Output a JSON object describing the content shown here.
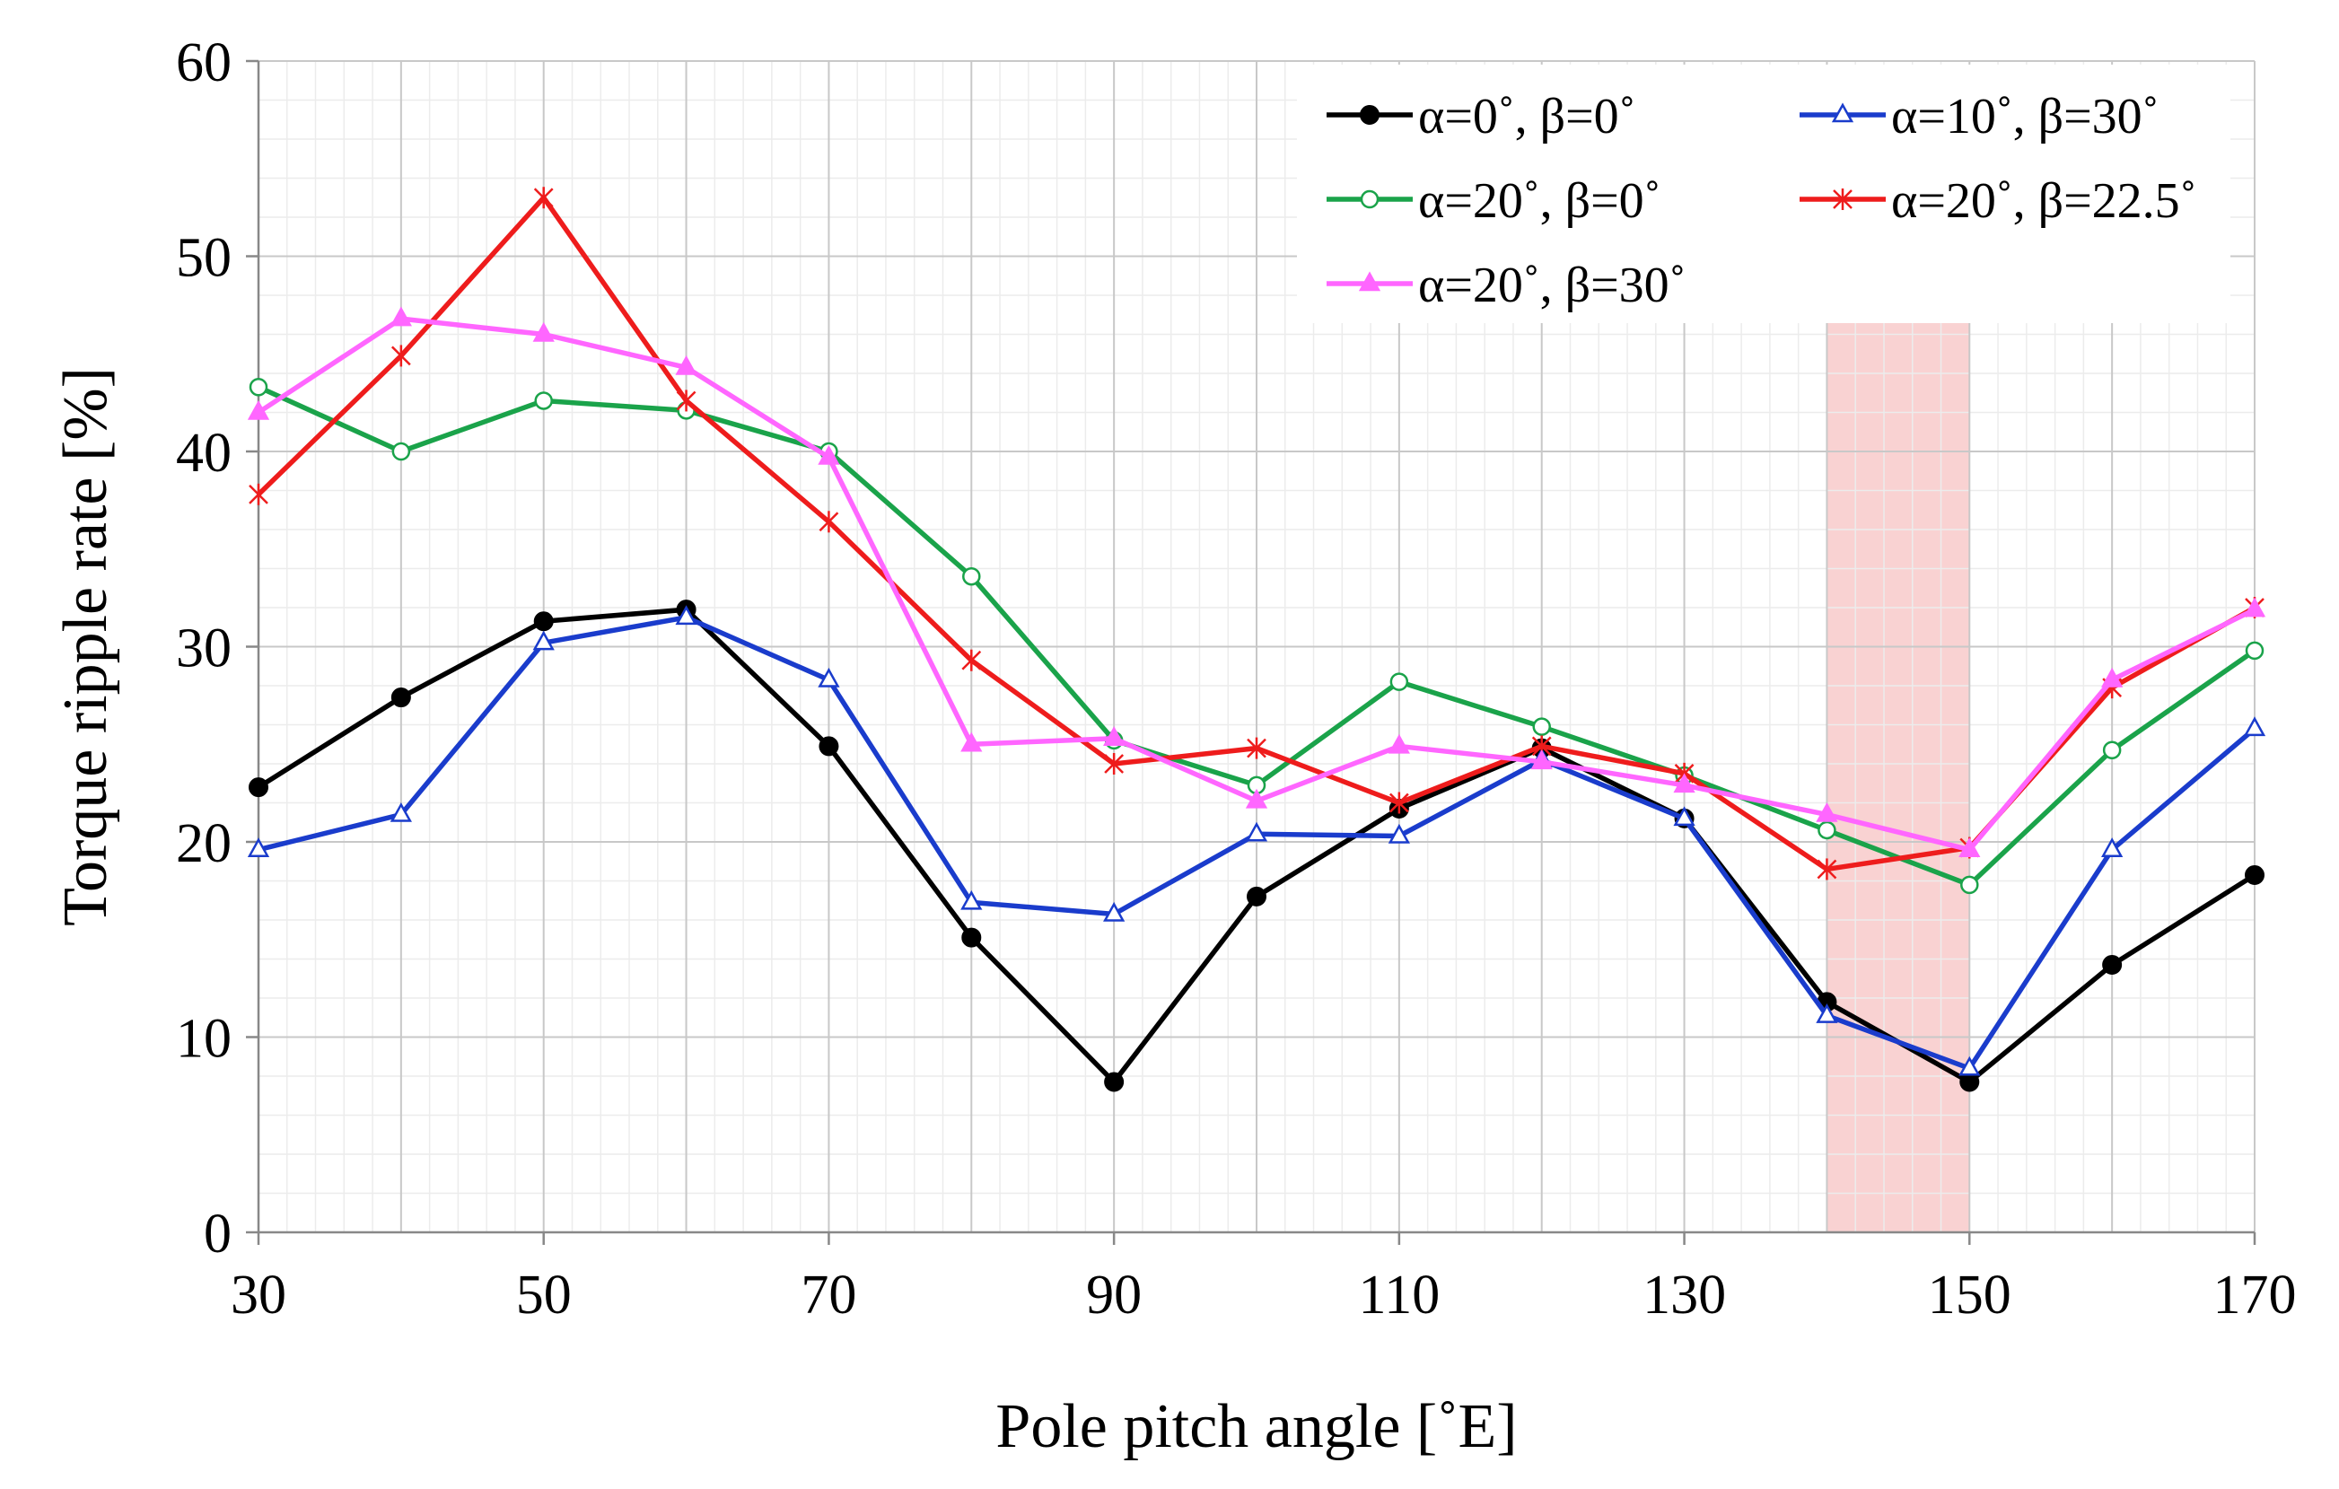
{
  "chart_data": {
    "type": "line",
    "title": "",
    "xlabel": "Pole pitch angle [˚E]",
    "ylabel": "Torque ripple rate [%]",
    "xlim": [
      30,
      170
    ],
    "ylim": [
      0,
      60
    ],
    "x_major_ticks": [
      30,
      50,
      70,
      90,
      110,
      130,
      150,
      170
    ],
    "x_tick_labels": [
      "30",
      "50",
      "70",
      "90",
      "110",
      "130",
      "150",
      "170"
    ],
    "y_major_ticks": [
      0,
      10,
      20,
      30,
      40,
      50,
      60
    ],
    "y_tick_labels": [
      "0",
      "10",
      "20",
      "30",
      "40",
      "50",
      "60"
    ],
    "x_minor_step": 2,
    "y_minor_step": 2,
    "grid": true,
    "legend_position": "top-right",
    "highlight_band": {
      "x_from": 140,
      "x_to": 150,
      "color": "#f4a6a6"
    },
    "x": [
      30,
      40,
      50,
      60,
      70,
      80,
      90,
      100,
      110,
      120,
      130,
      140,
      150,
      160,
      170
    ],
    "series": [
      {
        "name": "α=0˚, β=0˚",
        "color": "#000000",
        "marker": "filled-circle",
        "values": [
          22.8,
          27.4,
          31.3,
          31.9,
          24.9,
          15.1,
          7.7,
          17.2,
          21.7,
          24.8,
          21.2,
          11.8,
          7.7,
          13.7,
          18.3
        ]
      },
      {
        "name": "α=10˚, β=30˚",
        "color": "#1a3ccc",
        "marker": "open-triangle",
        "values": [
          19.6,
          21.4,
          30.2,
          31.5,
          28.3,
          16.9,
          16.3,
          20.4,
          20.3,
          24.2,
          21.2,
          11.1,
          8.4,
          19.6,
          25.8
        ]
      },
      {
        "name": "α=20˚, β=0˚",
        "color": "#1aa34a",
        "marker": "open-circle",
        "values": [
          43.3,
          40.0,
          42.6,
          42.1,
          40.0,
          33.6,
          25.2,
          22.9,
          28.2,
          25.9,
          23.4,
          20.6,
          17.8,
          24.7,
          29.8
        ]
      },
      {
        "name": "α=20˚, β=22.5˚",
        "color": "#ee1c1c",
        "marker": "asterisk",
        "values": [
          37.8,
          44.9,
          53.0,
          42.6,
          36.4,
          29.3,
          24.0,
          24.8,
          22.0,
          24.9,
          23.5,
          18.6,
          19.7,
          27.9,
          32.0
        ]
      },
      {
        "name": "α=20˚, β=30˚",
        "color": "#ff66ff",
        "marker": "filled-triangle",
        "values": [
          42.0,
          46.8,
          46.0,
          44.3,
          39.7,
          25.0,
          25.3,
          22.1,
          24.9,
          24.1,
          22.9,
          21.4,
          19.6,
          28.3,
          31.9
        ]
      }
    ]
  }
}
